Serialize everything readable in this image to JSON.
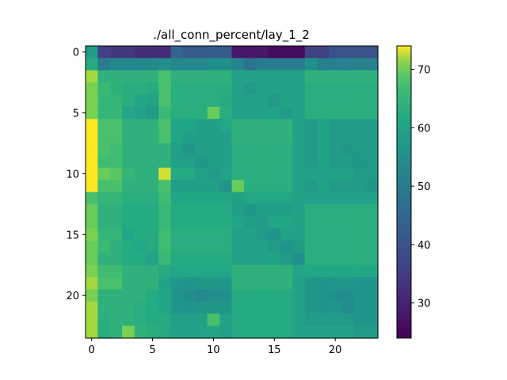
{
  "chart_data": {
    "type": "heatmap",
    "title": "./all_conn_percent/lay_1_2",
    "xlabel": "",
    "ylabel": "",
    "rows": 24,
    "cols": 24,
    "x_ticks": [
      0,
      5,
      10,
      15,
      20
    ],
    "y_ticks": [
      0,
      5,
      10,
      15,
      20
    ],
    "colorbar": {
      "vmin": 24,
      "vmax": 74,
      "ticks": [
        30,
        40,
        50,
        60,
        70
      ],
      "colormap": "viridis",
      "placement": "right"
    },
    "grid": false,
    "values": [
      [
        58,
        36,
        34,
        34,
        32,
        32,
        32,
        44,
        42,
        42,
        42,
        42,
        28,
        28,
        28,
        26,
        26,
        26,
        36,
        36,
        40,
        40,
        40,
        40
      ],
      [
        62,
        50,
        53,
        53,
        53,
        53,
        55,
        53,
        53,
        53,
        55,
        55,
        52,
        48,
        50,
        50,
        50,
        50,
        55,
        51,
        51,
        51,
        51,
        51
      ],
      [
        72,
        64,
        64,
        64,
        64,
        64,
        68,
        64,
        64,
        64,
        64,
        64,
        60,
        60,
        60,
        60,
        60,
        60,
        64,
        64,
        64,
        64,
        64,
        64
      ],
      [
        71,
        66,
        64,
        63,
        63,
        62,
        68,
        63,
        63,
        63,
        63,
        63,
        60,
        58,
        60,
        60,
        60,
        60,
        63,
        63,
        63,
        63,
        63,
        63
      ],
      [
        71,
        65,
        65,
        63,
        61,
        60,
        68,
        63,
        63,
        63,
        63,
        62,
        60,
        60,
        60,
        58,
        60,
        60,
        63,
        63,
        63,
        63,
        63,
        63
      ],
      [
        71,
        65,
        65,
        61,
        60,
        58,
        66,
        63,
        63,
        63,
        70,
        63,
        60,
        60,
        60,
        60,
        58,
        60,
        63,
        63,
        63,
        63,
        63,
        63
      ],
      [
        74,
        68,
        68,
        64,
        64,
        64,
        68,
        61,
        61,
        59,
        59,
        61,
        64,
        64,
        64,
        64,
        64,
        60,
        58,
        60,
        58,
        58,
        58,
        58
      ],
      [
        74,
        68,
        68,
        64,
        64,
        64,
        68,
        61,
        59,
        59,
        59,
        59,
        64,
        64,
        64,
        64,
        64,
        60,
        58,
        60,
        58,
        58,
        58,
        58
      ],
      [
        74,
        68,
        67,
        64,
        64,
        64,
        64,
        59,
        57,
        59,
        59,
        59,
        63,
        63,
        63,
        63,
        63,
        60,
        58,
        60,
        58,
        57,
        58,
        58
      ],
      [
        74,
        67,
        67,
        64,
        64,
        64,
        64,
        59,
        59,
        57,
        59,
        59,
        63,
        63,
        63,
        63,
        63,
        60,
        58,
        60,
        58,
        58,
        57,
        58
      ],
      [
        74,
        70,
        69,
        65,
        64,
        64,
        73,
        62,
        62,
        60,
        58,
        60,
        63,
        63,
        63,
        63,
        63,
        60,
        60,
        60,
        60,
        60,
        58,
        58
      ],
      [
        74,
        68,
        68,
        64,
        64,
        64,
        68,
        59,
        59,
        59,
        59,
        56,
        70,
        63,
        63,
        63,
        63,
        60,
        58,
        60,
        58,
        58,
        58,
        57
      ],
      [
        68,
        65,
        65,
        63,
        63,
        63,
        67,
        61,
        61,
        61,
        61,
        61,
        59,
        61,
        61,
        61,
        61,
        60,
        60,
        60,
        60,
        60,
        60,
        60
      ],
      [
        70,
        64,
        64,
        62,
        62,
        62,
        66,
        62,
        62,
        62,
        62,
        62,
        59,
        57,
        59,
        59,
        59,
        60,
        63,
        63,
        63,
        63,
        63,
        63
      ],
      [
        70,
        64,
        64,
        62,
        62,
        62,
        66,
        62,
        62,
        62,
        62,
        62,
        61,
        59,
        58,
        61,
        61,
        60,
        63,
        63,
        63,
        63,
        63,
        63
      ],
      [
        71,
        65,
        65,
        61,
        62,
        62,
        67,
        63,
        63,
        63,
        63,
        63,
        60,
        60,
        58,
        56,
        60,
        60,
        63,
        63,
        63,
        63,
        63,
        63
      ],
      [
        70,
        66,
        64,
        62,
        61,
        62,
        67,
        63,
        63,
        63,
        63,
        63,
        60,
        60,
        60,
        58,
        56,
        58,
        63,
        63,
        63,
        63,
        63,
        63
      ],
      [
        70,
        64,
        64,
        62,
        62,
        60,
        66,
        62,
        62,
        62,
        62,
        62,
        60,
        60,
        60,
        60,
        58,
        55,
        63,
        63,
        63,
        63,
        63,
        63
      ],
      [
        71,
        67,
        67,
        64,
        64,
        64,
        62,
        61,
        61,
        61,
        61,
        61,
        64,
        64,
        64,
        64,
        64,
        61,
        61,
        61,
        61,
        61,
        61,
        61
      ],
      [
        72,
        68,
        68,
        64,
        64,
        64,
        60,
        57,
        56,
        57,
        57,
        57,
        64,
        64,
        64,
        64,
        64,
        60,
        57,
        56,
        57,
        57,
        56,
        56
      ],
      [
        71,
        64,
        64,
        64,
        64,
        62,
        61,
        56,
        55,
        53,
        55,
        55,
        62,
        62,
        62,
        62,
        62,
        60,
        57,
        56,
        55,
        55,
        56,
        56
      ],
      [
        72,
        64,
        64,
        64,
        63,
        62,
        61,
        57,
        56,
        57,
        57,
        57,
        62,
        62,
        62,
        62,
        62,
        60,
        57,
        56,
        57,
        54,
        56,
        56
      ],
      [
        72,
        63,
        64,
        64,
        63,
        62,
        62,
        59,
        59,
        59,
        68,
        60,
        62,
        62,
        62,
        62,
        62,
        60,
        58,
        58,
        58,
        58,
        56,
        56
      ],
      [
        72,
        63,
        64,
        71,
        64,
        63,
        62,
        60,
        60,
        60,
        61,
        59,
        62,
        62,
        62,
        62,
        62,
        60,
        60,
        60,
        60,
        60,
        58,
        58
      ]
    ]
  }
}
